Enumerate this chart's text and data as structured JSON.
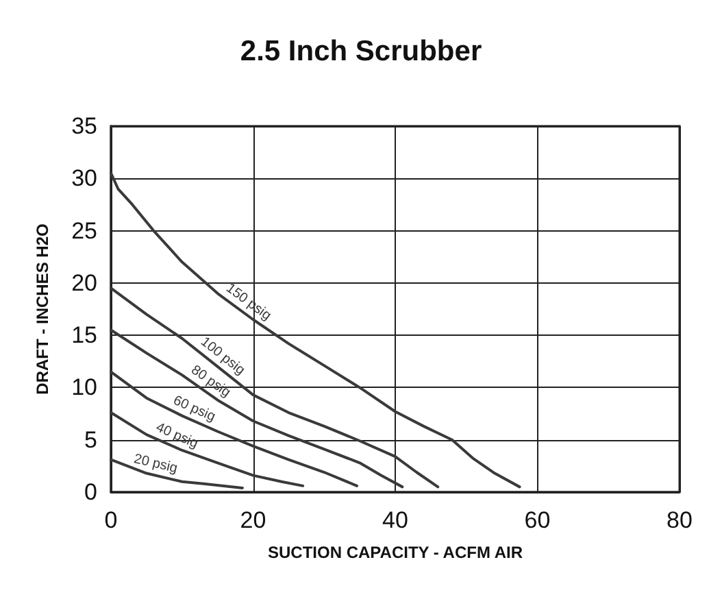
{
  "chart_data": {
    "type": "line",
    "title": "2.5 Inch Scrubber",
    "xlabel": "SUCTION CAPACITY - ACFM AIR",
    "ylabel": "DRAFT - INCHES H2O",
    "xlim": [
      0,
      80
    ],
    "xticks": [
      0,
      20,
      40,
      60,
      80
    ],
    "ylim": [
      0,
      35
    ],
    "yticks": [
      0,
      5,
      10,
      15,
      20,
      25,
      30,
      35
    ],
    "grid": true,
    "marker": "none",
    "line_style": "solid",
    "series": [
      {
        "name": "150 psig",
        "color": "#3a3a3a",
        "x": [
          0,
          1,
          3,
          6,
          10,
          15,
          20,
          25,
          30,
          35,
          40,
          44,
          48,
          51,
          54,
          57.5
        ],
        "values": [
          30.5,
          29,
          27.5,
          25,
          22,
          19,
          16.5,
          14.2,
          12.1,
          10,
          7.7,
          6.3,
          5,
          3.2,
          1.8,
          0.5
        ]
      },
      {
        "name": "100 psig",
        "color": "#3a3a3a",
        "x": [
          0,
          5,
          10,
          15,
          20,
          25,
          30,
          35,
          40,
          43,
          46
        ],
        "values": [
          19.5,
          17,
          14.7,
          12,
          9.3,
          7.6,
          6.3,
          4.9,
          3.4,
          1.9,
          0.5
        ]
      },
      {
        "name": "80 psig",
        "color": "#3a3a3a",
        "x": [
          0,
          5,
          10,
          15,
          20,
          25,
          30,
          35,
          38,
          41
        ],
        "values": [
          15.5,
          13.3,
          11.2,
          8.8,
          6.8,
          5.4,
          4.1,
          2.8,
          1.6,
          0.5
        ]
      },
      {
        "name": "60 psig",
        "color": "#3a3a3a",
        "x": [
          0,
          5,
          10,
          15,
          20,
          25,
          30,
          34.6
        ],
        "values": [
          11.5,
          9,
          7.3,
          5.8,
          4.4,
          3.1,
          1.9,
          0.6
        ]
      },
      {
        "name": "40 psig",
        "color": "#3a3a3a",
        "x": [
          0,
          5,
          10,
          15,
          20,
          24,
          27
        ],
        "values": [
          7.6,
          5.5,
          4,
          2.8,
          1.6,
          1,
          0.6
        ]
      },
      {
        "name": "20 psig",
        "color": "#3a3a3a",
        "x": [
          0,
          5,
          10,
          13,
          18.5
        ],
        "values": [
          3.1,
          1.8,
          1,
          0.8,
          0.4
        ]
      }
    ]
  }
}
